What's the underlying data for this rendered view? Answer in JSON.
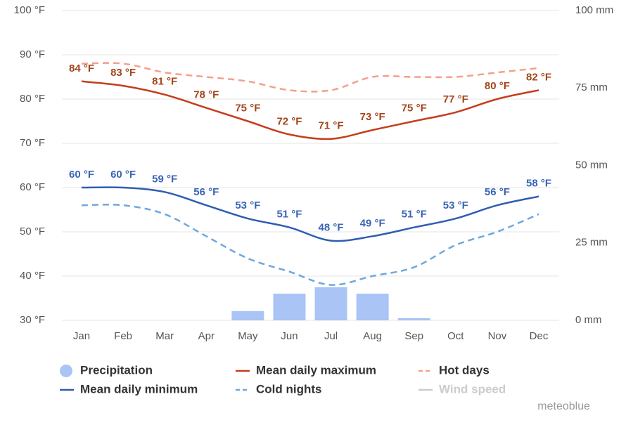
{
  "chart_data": {
    "type": "line",
    "categories": [
      "Jan",
      "Feb",
      "Mar",
      "Apr",
      "May",
      "Jun",
      "Jul",
      "Aug",
      "Sep",
      "Oct",
      "Nov",
      "Dec"
    ],
    "ylim": [
      30,
      100
    ],
    "yticks": [
      {
        "value": 30,
        "label": "30 °F"
      },
      {
        "value": 40,
        "label": "40 °F"
      },
      {
        "value": 50,
        "label": "50 °F"
      },
      {
        "value": 60,
        "label": "60 °F"
      },
      {
        "value": 70,
        "label": "70 °F"
      },
      {
        "value": 80,
        "label": "80 °F"
      },
      {
        "value": 90,
        "label": "90 °F"
      },
      {
        "value": 100,
        "label": "100 °F"
      }
    ],
    "y2lim": [
      0,
      100
    ],
    "y2ticks": [
      {
        "value": 0,
        "label": "0 mm"
      },
      {
        "value": 25,
        "label": "25 mm"
      },
      {
        "value": 50,
        "label": "50 mm"
      },
      {
        "value": 75,
        "label": "75 mm"
      },
      {
        "value": 100,
        "label": "100 mm"
      }
    ],
    "grid": true,
    "series": [
      {
        "name": "Precipitation",
        "type": "bar",
        "axis": "y2",
        "color": "#a9c4f5",
        "values": [
          0,
          0,
          0,
          0,
          3,
          8.6,
          10.7,
          8.6,
          0.7,
          0,
          0,
          0
        ]
      },
      {
        "name": "Mean daily maximum",
        "color": "#c53d1d",
        "label_color": "#a3461b",
        "values": [
          84,
          83,
          81,
          78,
          75,
          72,
          71,
          73,
          75,
          77,
          80,
          82
        ],
        "value_labels": [
          "84 °F",
          "83 °F",
          "81 °F",
          "78 °F",
          "75 °F",
          "72 °F",
          "71 °F",
          "73 °F",
          "75 °F",
          "77 °F",
          "80 °F",
          "82 °F"
        ]
      },
      {
        "name": "Hot days",
        "color": "#f4a08a",
        "dashed": true,
        "values": [
          88,
          88,
          86,
          85,
          84,
          82,
          82,
          85,
          85,
          85,
          86,
          87
        ]
      },
      {
        "name": "Mean daily minimum",
        "color": "#2f5db3",
        "label_color": "#3a64b5",
        "values": [
          60,
          60,
          59,
          56,
          53,
          51,
          48,
          49,
          51,
          53,
          56,
          58
        ],
        "value_labels": [
          "60 °F",
          "60 °F",
          "59 °F",
          "56 °F",
          "53 °F",
          "51 °F",
          "48 °F",
          "49 °F",
          "51 °F",
          "53 °F",
          "56 °F",
          "58 °F"
        ]
      },
      {
        "name": "Cold nights",
        "color": "#6fa8dc",
        "dashed": true,
        "values": [
          56,
          56,
          54,
          49,
          44,
          41,
          38,
          40,
          42,
          47,
          50,
          54
        ]
      },
      {
        "name": "Wind speed",
        "color": "#cccccc",
        "hidden": true
      }
    ],
    "credit": "meteoblue"
  }
}
